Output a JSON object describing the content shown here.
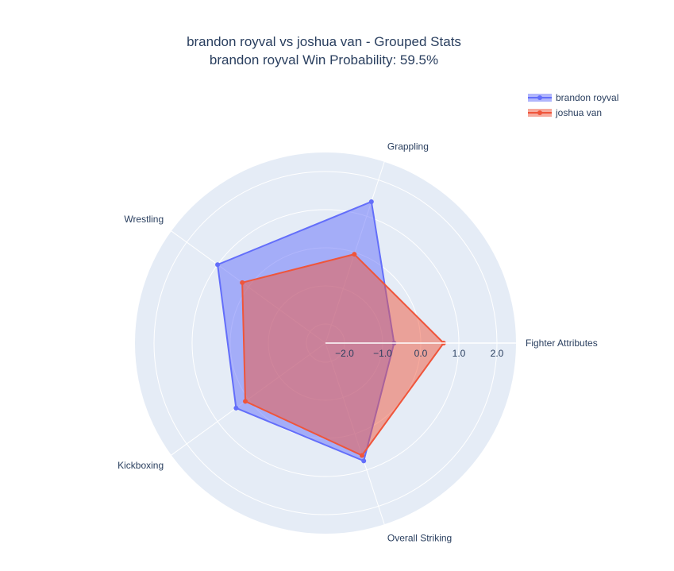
{
  "chart_data": {
    "type": "radar",
    "title": "brandon royval vs joshua van - Grouped Stats",
    "subtitle": "brandon royval Win Probability: 59.5%",
    "categories": [
      "Fighter Attributes",
      "Overall Striking",
      "Kickboxing",
      "Wrestling",
      "Grappling"
    ],
    "radial_range": [
      -2.5,
      2.5
    ],
    "radial_ticks": [
      -2.0,
      -1.0,
      0.0,
      1.0,
      2.0
    ],
    "radial_tick_labels": [
      "−2.0",
      "−1.0",
      "0.0",
      "1.0",
      "2.0"
    ],
    "grid": true,
    "legend_position": "top-right",
    "series": [
      {
        "name": "brandon royval",
        "color": "#636efa",
        "fill": "rgba(99,110,250,0.5)",
        "values": [
          -0.7,
          0.75,
          0.4,
          1.0,
          1.4
        ]
      },
      {
        "name": "joshua van",
        "color": "#ef553b",
        "fill": "rgba(239,85,59,0.5)",
        "values": [
          0.6,
          0.6,
          0.1,
          0.2,
          -0.05
        ]
      }
    ]
  }
}
